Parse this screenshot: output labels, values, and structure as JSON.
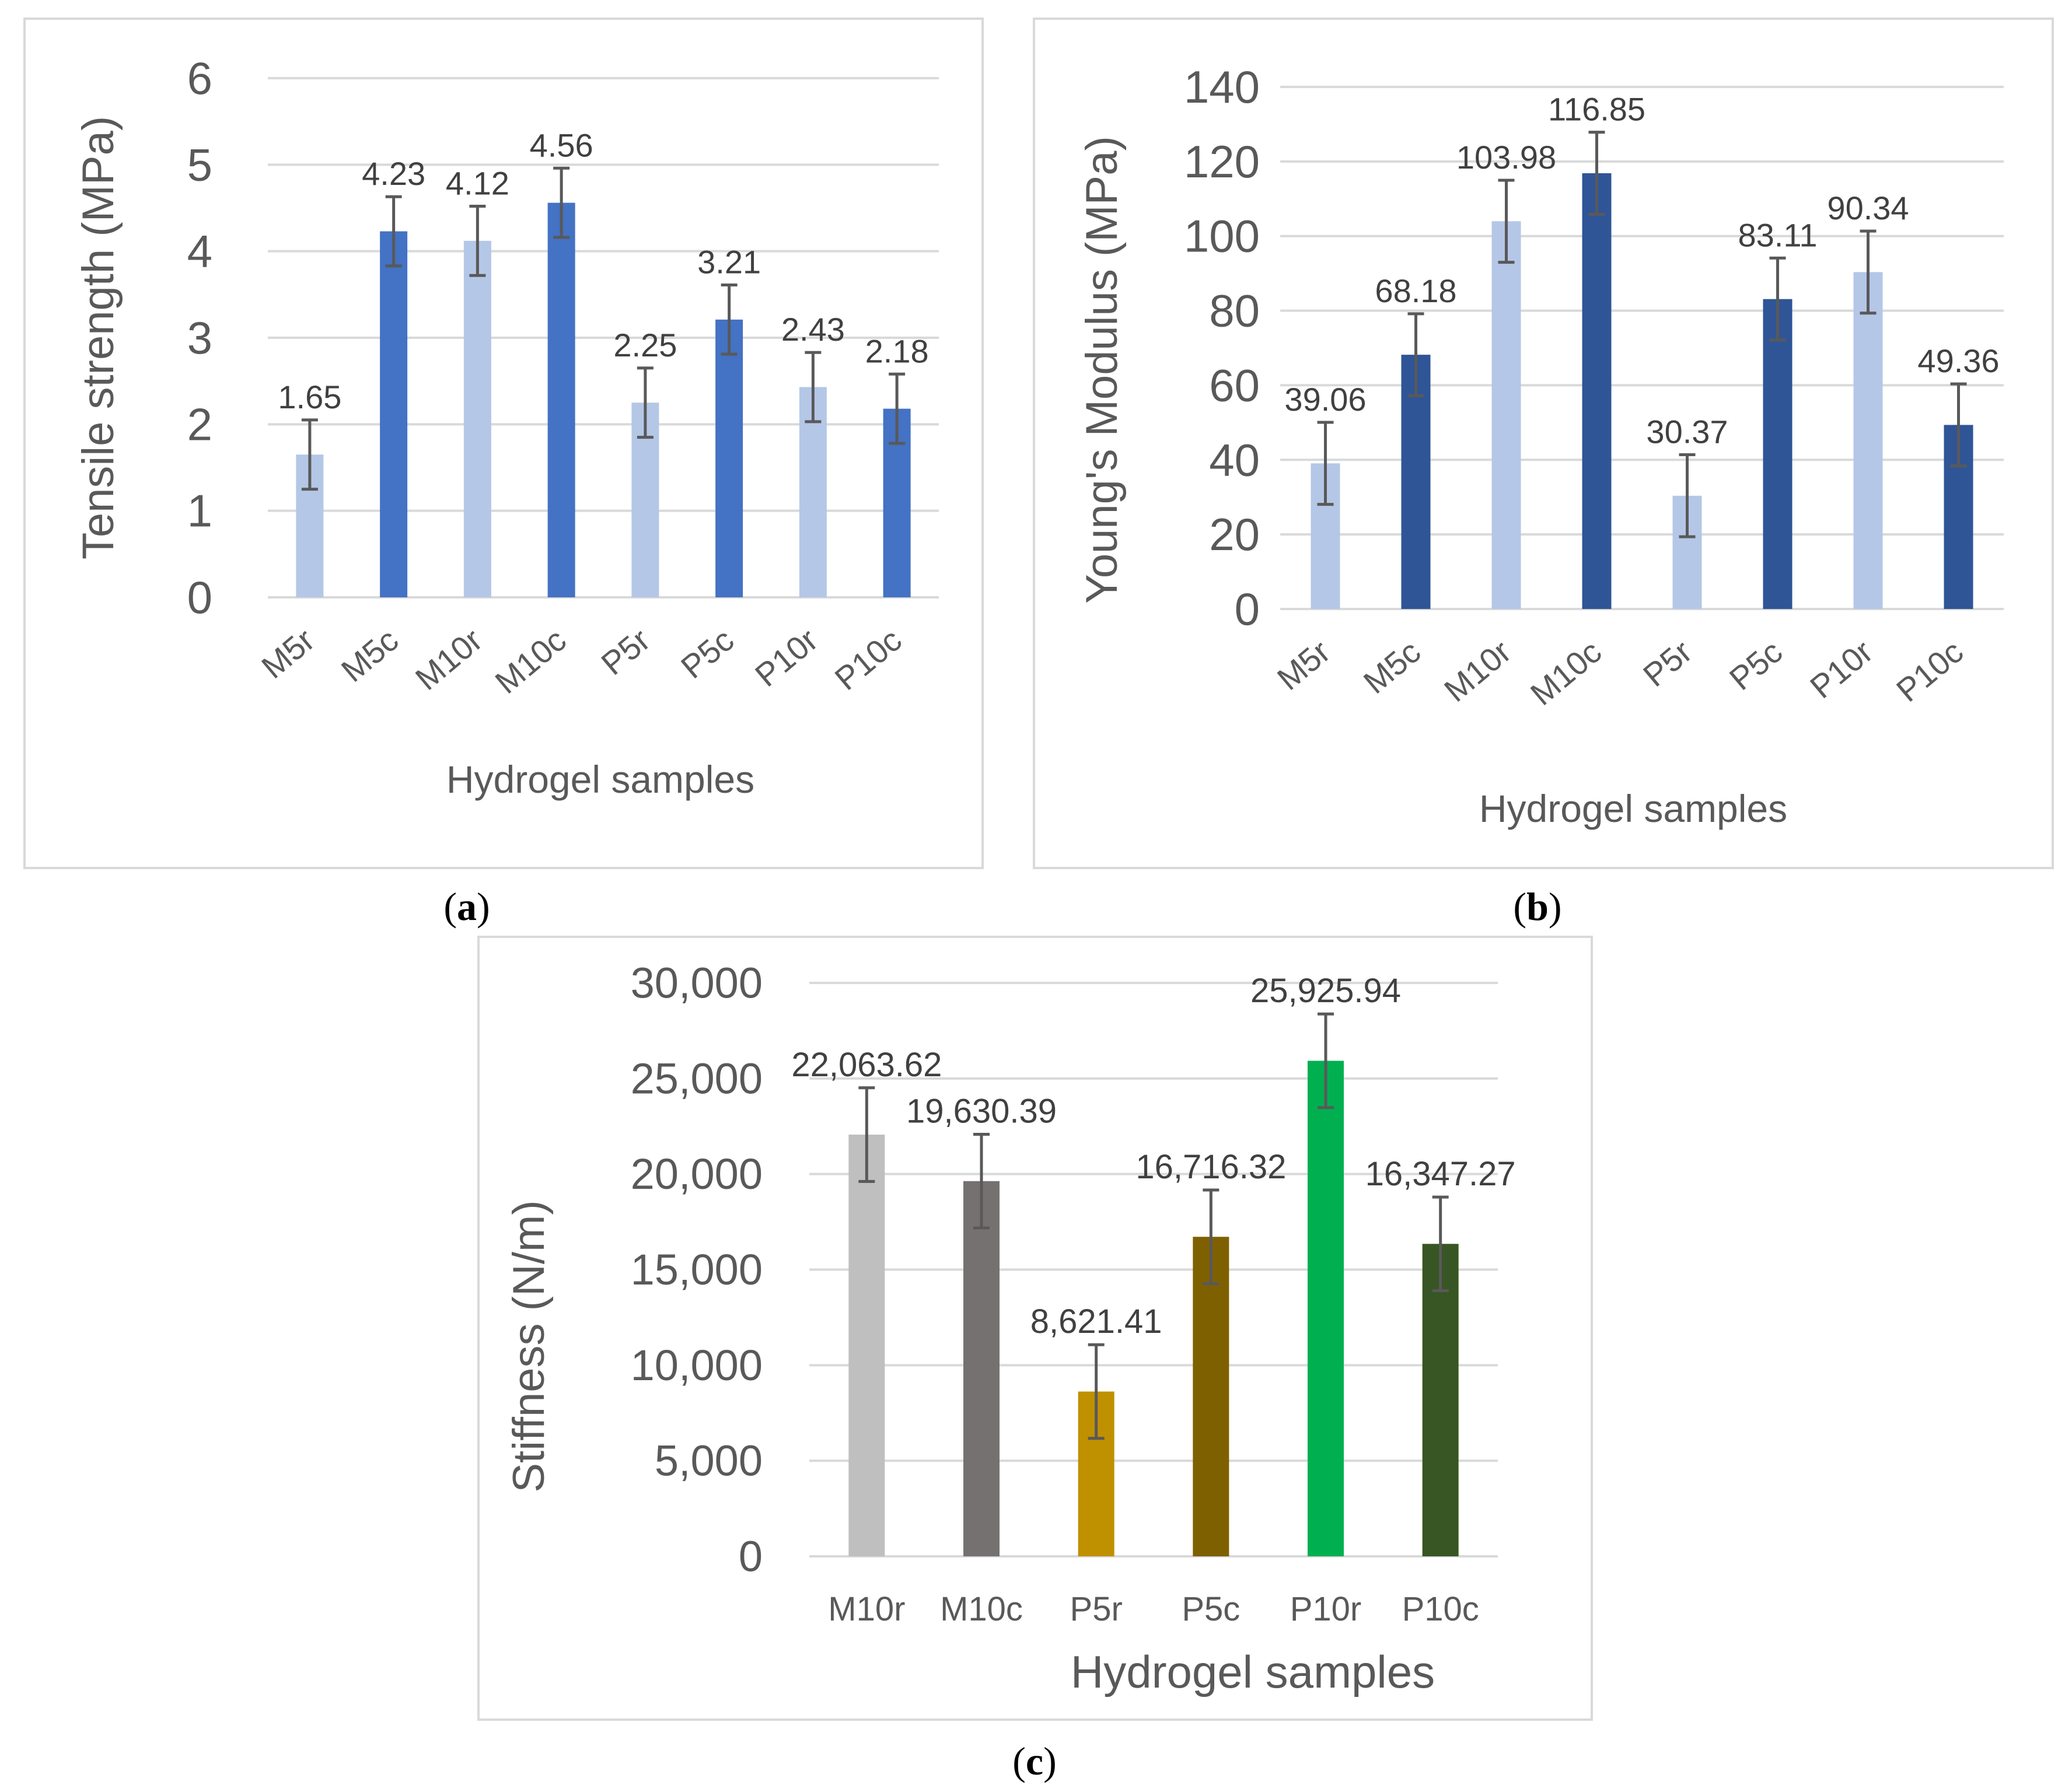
{
  "figures": {
    "a": {
      "caption_open": "(",
      "caption_letter": "a",
      "caption_close": ")"
    },
    "b": {
      "caption_open": "(",
      "caption_letter": "b",
      "caption_close": ")"
    },
    "c": {
      "caption_open": "(",
      "caption_letter": "c",
      "caption_close": ")"
    }
  },
  "chart_data": [
    {
      "id": "a",
      "type": "bar",
      "title": "",
      "xlabel": "Hydrogel samples",
      "ylabel": "Tensile strength (MPa)",
      "ylim": [
        0,
        6
      ],
      "yticks": [
        0,
        1,
        2,
        3,
        4,
        5,
        6
      ],
      "ytick_labels": [
        "0",
        "1",
        "2",
        "3",
        "4",
        "5",
        "6"
      ],
      "grid": true,
      "categories": [
        "M5r",
        "M5c",
        "M10r",
        "M10c",
        "P5r",
        "P5c",
        "P10r",
        "P10c"
      ],
      "values": [
        1.65,
        4.23,
        4.12,
        4.56,
        2.25,
        3.21,
        2.43,
        2.18
      ],
      "errors": [
        0.4,
        0.4,
        0.4,
        0.4,
        0.4,
        0.4,
        0.4,
        0.4
      ],
      "value_labels": [
        "1.65",
        "4.23",
        "4.12",
        "4.56",
        "2.25",
        "3.21",
        "2.43",
        "2.18"
      ],
      "colors": [
        "#b4c7e7",
        "#4472c4",
        "#b4c7e7",
        "#4472c4",
        "#b4c7e7",
        "#4472c4",
        "#b4c7e7",
        "#4472c4"
      ]
    },
    {
      "id": "b",
      "type": "bar",
      "title": "",
      "xlabel": "Hydrogel samples",
      "ylabel": "Young's Modulus (MPa)",
      "ylim": [
        0,
        140
      ],
      "yticks": [
        0,
        20,
        40,
        60,
        80,
        100,
        120,
        140
      ],
      "ytick_labels": [
        "0",
        "20",
        "40",
        "60",
        "80",
        "100",
        "120",
        "140"
      ],
      "grid": true,
      "categories": [
        "M5r",
        "M5c",
        "M10r",
        "M10c",
        "P5r",
        "P5c",
        "P10r",
        "P10c"
      ],
      "values": [
        39.06,
        68.18,
        103.98,
        116.85,
        30.37,
        83.11,
        90.34,
        49.36
      ],
      "errors": [
        11,
        11,
        11,
        11,
        11,
        11,
        11,
        11
      ],
      "value_labels": [
        "39.06",
        "68.18",
        "103.98",
        "116.85",
        "30.37",
        "83.11",
        "90.34",
        "49.36"
      ],
      "colors": [
        "#b4c7e7",
        "#2f5597",
        "#b4c7e7",
        "#2f5597",
        "#b4c7e7",
        "#2f5597",
        "#b4c7e7",
        "#2f5597"
      ]
    },
    {
      "id": "c",
      "type": "bar",
      "title": "",
      "xlabel": "Hydrogel samples",
      "ylabel": "Stiffness (N/m)",
      "ylim": [
        0,
        30000
      ],
      "yticks": [
        0,
        5000,
        10000,
        15000,
        20000,
        25000,
        30000
      ],
      "ytick_labels": [
        "0",
        "5,000",
        "10,000",
        "15,000",
        "20,000",
        "25,000",
        "30,000"
      ],
      "grid": true,
      "categories": [
        "M10r",
        "M10c",
        "P5r",
        "P5c",
        "P10r",
        "P10c"
      ],
      "values": [
        22063.62,
        19630.39,
        8621.41,
        16716.32,
        25925.94,
        16347.27
      ],
      "errors": [
        2450,
        2450,
        2450,
        2450,
        2450,
        2450
      ],
      "value_labels": [
        "22,063.62",
        "19,630.39",
        "8,621.41",
        "16,716.32",
        "25,925.94",
        "16,347.27"
      ],
      "colors": [
        "#bfbfbf",
        "#767171",
        "#bf9000",
        "#7f6000",
        "#00b050",
        "#375623"
      ]
    }
  ]
}
